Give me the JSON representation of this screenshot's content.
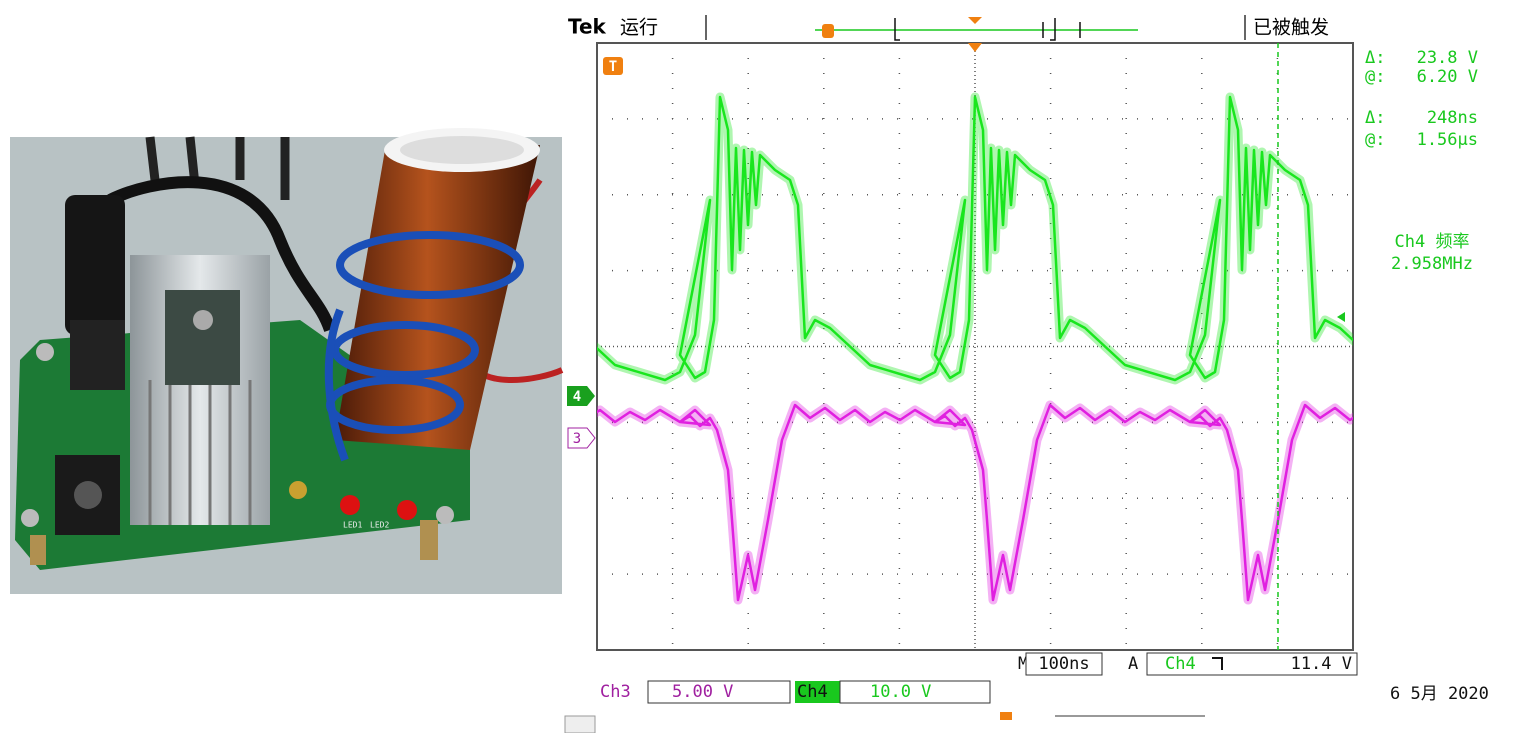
{
  "scope": {
    "brand": "Tek",
    "status": "运行",
    "trigger_state": "已被触发",
    "markers": {
      "trigger": "T",
      "ch4": "4",
      "ch3": "3"
    },
    "cursor": {
      "delta_v_label": "Δ:",
      "delta_v": "23.8 V",
      "at_v_label": "@:",
      "at_v": "6.20 V",
      "delta_t_label": "Δ:",
      "delta_t": "248ns",
      "at_t_label": "@:",
      "at_t": "1.56µs"
    },
    "measure": {
      "label": "Ch4 频率",
      "value": "2.958MHz"
    },
    "timebase": {
      "label": "M",
      "value": "100ns"
    },
    "trigger": {
      "label": "A",
      "source": "Ch4",
      "level": "11.4 V"
    },
    "channels": [
      {
        "name": "Ch3",
        "scale": "5.00 V"
      },
      {
        "name": "Ch4",
        "scale": "10.0 V"
      }
    ],
    "date": "6 5月 2020"
  },
  "photo": {
    "labels": [
      "LED1",
      "LED2"
    ]
  }
}
